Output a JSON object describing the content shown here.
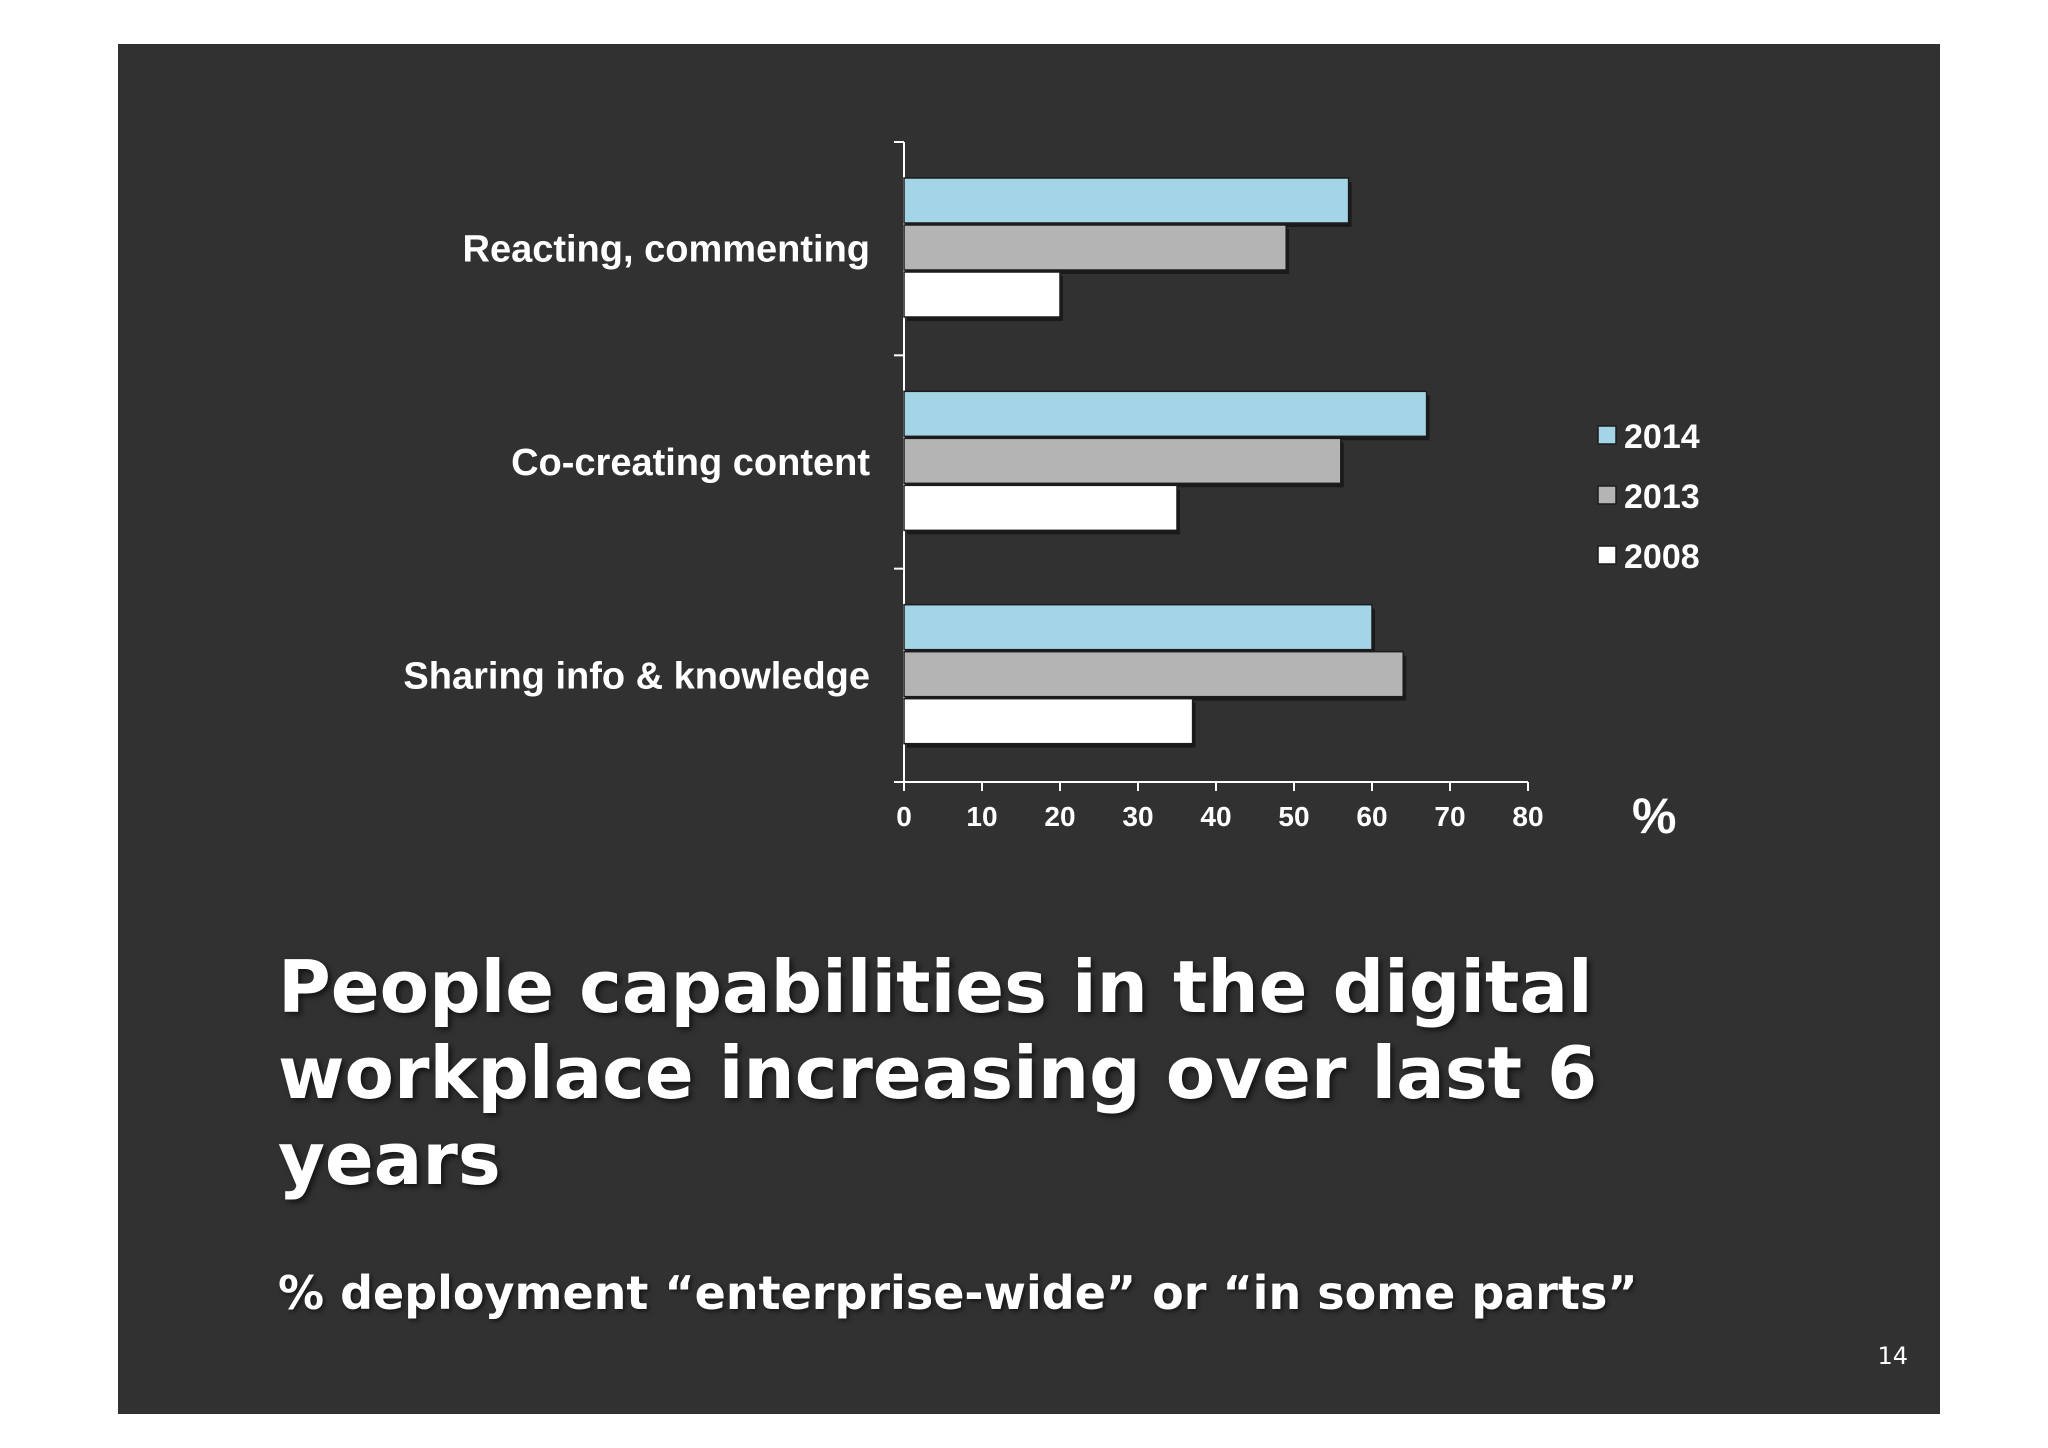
{
  "slide": {
    "headline": "People capabilities in the digital workplace increasing over last 6 years",
    "subtitle": "% deployment “enterprise-wide” or “in some parts”",
    "page_number": "14"
  },
  "chart_data": {
    "type": "bar",
    "orientation": "horizontal",
    "categories": [
      "Reacting, commenting",
      "Co-creating content",
      "Sharing info & knowledge"
    ],
    "series": [
      {
        "name": "2014",
        "values": [
          57,
          67,
          60
        ],
        "color": "#a4d5e6"
      },
      {
        "name": "2013",
        "values": [
          49,
          56,
          64
        ],
        "color": "#b4b4b5"
      },
      {
        "name": "2008",
        "values": [
          20,
          35,
          37
        ],
        "color": "#ffffff"
      }
    ],
    "xlim": [
      0,
      80
    ],
    "xticks": [
      0,
      10,
      20,
      30,
      40,
      50,
      60,
      70,
      80
    ],
    "xlabel": "%",
    "grid": false,
    "legend": "right"
  }
}
